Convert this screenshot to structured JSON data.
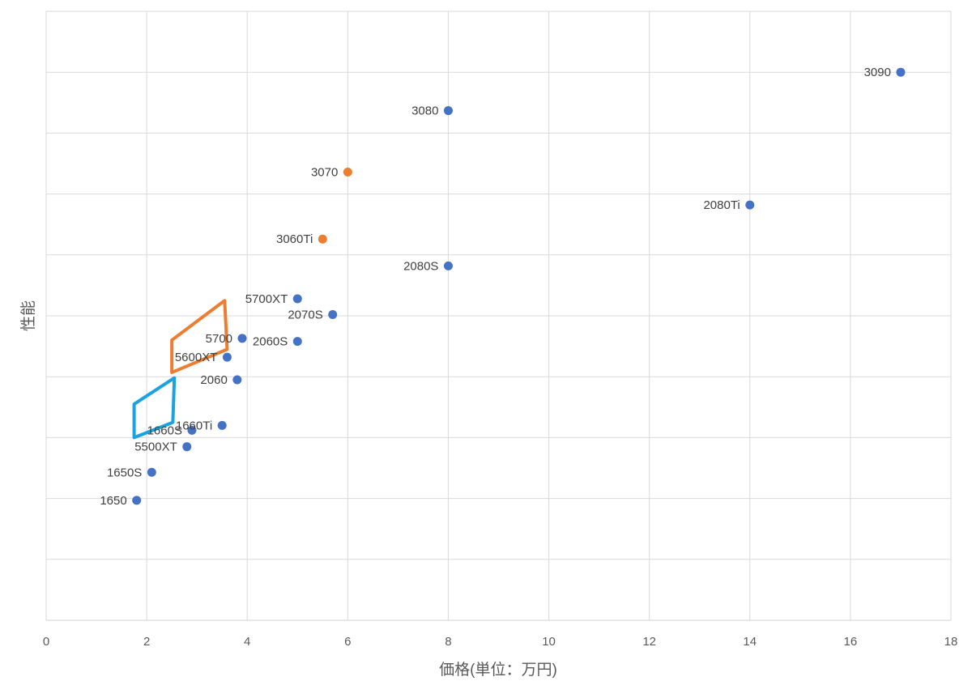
{
  "chart_data": {
    "type": "scatter",
    "title": "",
    "xlabel": "価格(単位：万円)",
    "ylabel": "性能",
    "xlim": [
      0,
      18
    ],
    "ylim": [
      0,
      10
    ],
    "x_ticks": [
      "0",
      "2",
      "4",
      "6",
      "8",
      "10",
      "12",
      "14",
      "16",
      "18"
    ],
    "y_ticks": [],
    "grid": true,
    "legend": "none",
    "colors": {
      "default": "#4472C4",
      "highlight": "#ED7D31",
      "grid": "#D9D9D9"
    },
    "points": [
      {
        "label": "3090",
        "x": 17.0,
        "y": 9.0,
        "color": "#4472C4"
      },
      {
        "label": "3080",
        "x": 8.0,
        "y": 8.37,
        "color": "#4472C4"
      },
      {
        "label": "3070",
        "x": 6.0,
        "y": 7.36,
        "color": "#ED7D31"
      },
      {
        "label": "2080Ti",
        "x": 14.0,
        "y": 6.82,
        "color": "#4472C4"
      },
      {
        "label": "3060Ti",
        "x": 5.5,
        "y": 6.26,
        "color": "#ED7D31"
      },
      {
        "label": "2080S",
        "x": 8.0,
        "y": 5.82,
        "color": "#4472C4"
      },
      {
        "label": "5700XT",
        "x": 5.0,
        "y": 5.28,
        "color": "#4472C4"
      },
      {
        "label": "2070S",
        "x": 5.7,
        "y": 5.02,
        "color": "#4472C4"
      },
      {
        "label": "5700",
        "x": 3.9,
        "y": 4.63,
        "color": "#4472C4"
      },
      {
        "label": "2060S",
        "x": 5.0,
        "y": 4.58,
        "color": "#4472C4"
      },
      {
        "label": "5600XT",
        "x": 3.6,
        "y": 4.32,
        "color": "#4472C4"
      },
      {
        "label": "2060",
        "x": 3.8,
        "y": 3.95,
        "color": "#4472C4"
      },
      {
        "label": "1660Ti",
        "x": 3.5,
        "y": 3.2,
        "color": "#4472C4"
      },
      {
        "label": "1660S",
        "x": 2.9,
        "y": 3.12,
        "color": "#4472C4"
      },
      {
        "label": "5500XT",
        "x": 2.8,
        "y": 2.85,
        "color": "#4472C4"
      },
      {
        "label": "1650S",
        "x": 2.1,
        "y": 2.43,
        "color": "#4472C4"
      },
      {
        "label": "1650",
        "x": 1.8,
        "y": 1.97,
        "color": "#4472C4"
      }
    ],
    "annotations": [
      {
        "type": "hand-drawn-outline",
        "color": "#ED7D31",
        "vertices": [
          [
            2.5,
            4.6
          ],
          [
            3.55,
            5.25
          ],
          [
            3.6,
            4.45
          ],
          [
            2.5,
            4.07
          ]
        ]
      },
      {
        "type": "hand-drawn-outline",
        "color": "#1AA3E0",
        "vertices": [
          [
            1.75,
            3.55
          ],
          [
            2.55,
            3.98
          ],
          [
            2.52,
            3.25
          ],
          [
            1.75,
            3.0
          ]
        ]
      }
    ]
  }
}
